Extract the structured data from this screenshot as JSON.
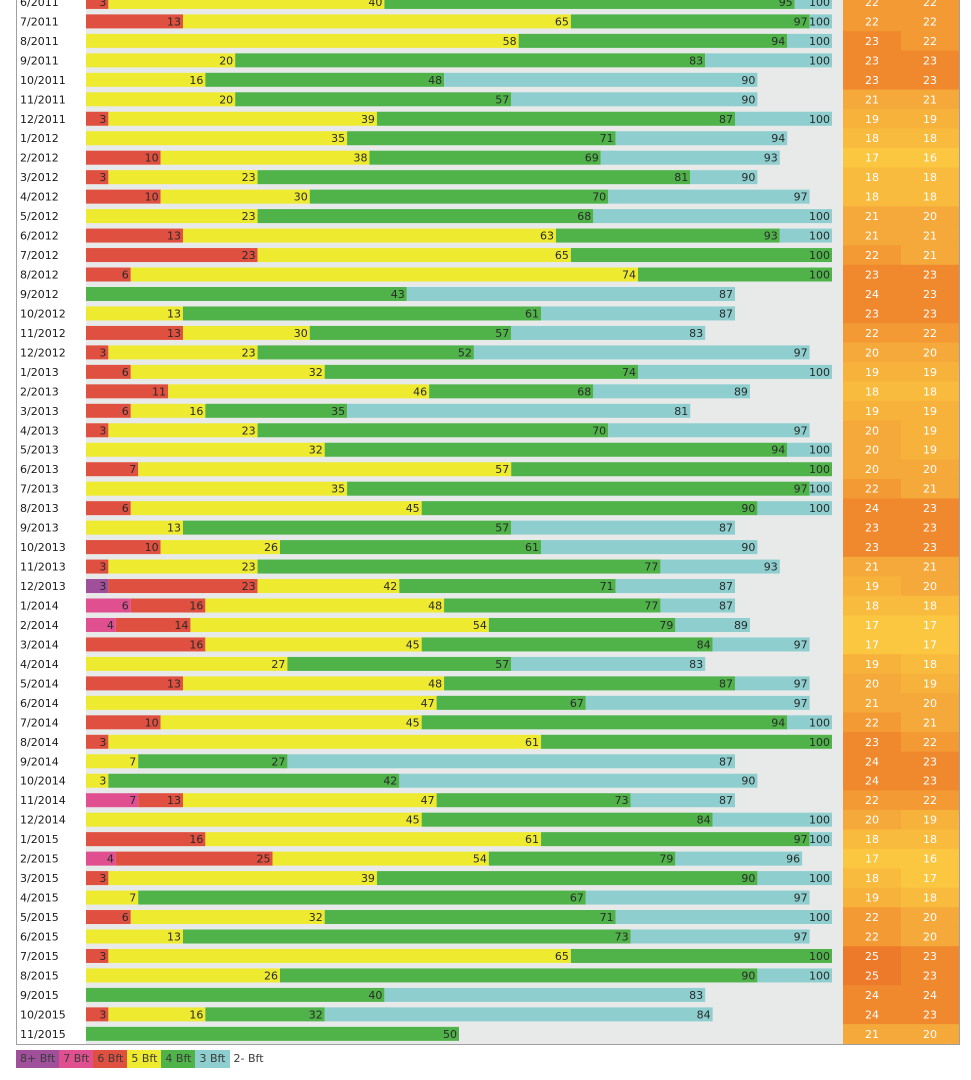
{
  "chart_data": {
    "type": "bar",
    "title": "",
    "xlabel": "",
    "ylabel": "",
    "xlim": [
      0,
      100
    ],
    "series_colors": {
      "8+ Bft": "#a0509a",
      "7 Bft": "#e05090",
      "6 Bft": "#e05040",
      "5 Bft": "#eeea30",
      "4 Bft": "#4fb34a",
      "3 Bft": "#8ecece",
      "2- Bft": "#e8eaea"
    },
    "cumulative_order": [
      "8+ Bft",
      "7 Bft",
      "6 Bft",
      "5 Bft",
      "4 Bft",
      "3 Bft"
    ],
    "rows": [
      {
        "label": "6/2011",
        "c": [
          null,
          null,
          3,
          40,
          95,
          100
        ],
        "t1": "22",
        "t2": "22"
      },
      {
        "label": "7/2011",
        "c": [
          null,
          null,
          13,
          65,
          97,
          100
        ],
        "t1": "22",
        "t2": "22"
      },
      {
        "label": "8/2011",
        "c": [
          null,
          null,
          null,
          58,
          94,
          100
        ],
        "t1": "23",
        "t2": "22"
      },
      {
        "label": "9/2011",
        "c": [
          null,
          null,
          null,
          20,
          83,
          100
        ],
        "t1": "23",
        "t2": "23"
      },
      {
        "label": "10/2011",
        "c": [
          null,
          null,
          null,
          16,
          48,
          90
        ],
        "t1": "23",
        "t2": "23"
      },
      {
        "label": "11/2011",
        "c": [
          null,
          null,
          null,
          20,
          57,
          90
        ],
        "t1": "21",
        "t2": "21"
      },
      {
        "label": "12/2011",
        "c": [
          null,
          null,
          3,
          39,
          87,
          100
        ],
        "t1": "19",
        "t2": "19"
      },
      {
        "label": "1/2012",
        "c": [
          null,
          null,
          null,
          35,
          71,
          94
        ],
        "t1": "18",
        "t2": "18"
      },
      {
        "label": "2/2012",
        "c": [
          null,
          null,
          10,
          38,
          69,
          93
        ],
        "t1": "17",
        "t2": "16"
      },
      {
        "label": "3/2012",
        "c": [
          null,
          null,
          3,
          23,
          81,
          90
        ],
        "t1": "18",
        "t2": "18"
      },
      {
        "label": "4/2012",
        "c": [
          null,
          null,
          10,
          30,
          70,
          97
        ],
        "t1": "18",
        "t2": "18"
      },
      {
        "label": "5/2012",
        "c": [
          null,
          null,
          null,
          23,
          68,
          100
        ],
        "t1": "21",
        "t2": "20"
      },
      {
        "label": "6/2012",
        "c": [
          null,
          null,
          13,
          63,
          93,
          100
        ],
        "t1": "21",
        "t2": "21"
      },
      {
        "label": "7/2012",
        "c": [
          null,
          null,
          23,
          65,
          100,
          null
        ],
        "t1": "22",
        "t2": "21"
      },
      {
        "label": "8/2012",
        "c": [
          null,
          null,
          6,
          74,
          100,
          null
        ],
        "t1": "23",
        "t2": "23"
      },
      {
        "label": "9/2012",
        "c": [
          null,
          null,
          null,
          null,
          43,
          87
        ],
        "t1": "24",
        "t2": "23"
      },
      {
        "label": "10/2012",
        "c": [
          null,
          null,
          null,
          13,
          61,
          87
        ],
        "t1": "23",
        "t2": "23"
      },
      {
        "label": "11/2012",
        "c": [
          null,
          null,
          13,
          30,
          57,
          83
        ],
        "t1": "22",
        "t2": "22"
      },
      {
        "label": "12/2012",
        "c": [
          null,
          null,
          3,
          23,
          52,
          97
        ],
        "t1": "20",
        "t2": "20"
      },
      {
        "label": "1/2013",
        "c": [
          null,
          null,
          6,
          32,
          74,
          100
        ],
        "t1": "19",
        "t2": "19"
      },
      {
        "label": "2/2013",
        "c": [
          null,
          null,
          11,
          46,
          68,
          89
        ],
        "t1": "18",
        "t2": "18"
      },
      {
        "label": "3/2013",
        "c": [
          null,
          null,
          6,
          16,
          35,
          81
        ],
        "t1": "19",
        "t2": "19"
      },
      {
        "label": "4/2013",
        "c": [
          null,
          null,
          3,
          23,
          70,
          97
        ],
        "t1": "20",
        "t2": "19"
      },
      {
        "label": "5/2013",
        "c": [
          null,
          null,
          null,
          32,
          94,
          100
        ],
        "t1": "20",
        "t2": "19"
      },
      {
        "label": "6/2013",
        "c": [
          null,
          null,
          7,
          57,
          100,
          null
        ],
        "t1": "20",
        "t2": "20"
      },
      {
        "label": "7/2013",
        "c": [
          null,
          null,
          null,
          35,
          97,
          100
        ],
        "t1": "22",
        "t2": "21"
      },
      {
        "label": "8/2013",
        "c": [
          null,
          null,
          6,
          45,
          90,
          100
        ],
        "t1": "24",
        "t2": "23"
      },
      {
        "label": "9/2013",
        "c": [
          null,
          null,
          null,
          13,
          57,
          87
        ],
        "t1": "23",
        "t2": "23"
      },
      {
        "label": "10/2013",
        "c": [
          null,
          null,
          10,
          26,
          61,
          90
        ],
        "t1": "23",
        "t2": "23"
      },
      {
        "label": "11/2013",
        "c": [
          null,
          null,
          3,
          23,
          77,
          93
        ],
        "t1": "21",
        "t2": "21"
      },
      {
        "label": "12/2013",
        "c": [
          3,
          null,
          23,
          42,
          71,
          87
        ],
        "t1": "19",
        "t2": "20"
      },
      {
        "label": "1/2014",
        "c": [
          null,
          6,
          16,
          48,
          77,
          87
        ],
        "t1": "18",
        "t2": "18"
      },
      {
        "label": "2/2014",
        "c": [
          null,
          4,
          14,
          54,
          79,
          89
        ],
        "t1": "17",
        "t2": "17"
      },
      {
        "label": "3/2014",
        "c": [
          null,
          null,
          16,
          45,
          84,
          97
        ],
        "t1": "17",
        "t2": "17"
      },
      {
        "label": "4/2014",
        "c": [
          null,
          null,
          null,
          27,
          57,
          83
        ],
        "t1": "19",
        "t2": "18"
      },
      {
        "label": "5/2014",
        "c": [
          null,
          null,
          13,
          48,
          87,
          97
        ],
        "t1": "20",
        "t2": "19"
      },
      {
        "label": "6/2014",
        "c": [
          null,
          null,
          null,
          47,
          67,
          97
        ],
        "t1": "21",
        "t2": "20"
      },
      {
        "label": "7/2014",
        "c": [
          null,
          null,
          10,
          45,
          94,
          100
        ],
        "t1": "22",
        "t2": "21"
      },
      {
        "label": "8/2014",
        "c": [
          null,
          null,
          3,
          61,
          100,
          null
        ],
        "t1": "23",
        "t2": "22"
      },
      {
        "label": "9/2014",
        "c": [
          null,
          null,
          null,
          7,
          27,
          87
        ],
        "t1": "24",
        "t2": "23"
      },
      {
        "label": "10/2014",
        "c": [
          null,
          null,
          null,
          3,
          42,
          90
        ],
        "t1": "24",
        "t2": "23"
      },
      {
        "label": "11/2014",
        "c": [
          null,
          7,
          13,
          47,
          73,
          87
        ],
        "t1": "22",
        "t2": "22"
      },
      {
        "label": "12/2014",
        "c": [
          null,
          null,
          null,
          45,
          84,
          100
        ],
        "t1": "20",
        "t2": "19"
      },
      {
        "label": "1/2015",
        "c": [
          null,
          null,
          16,
          61,
          97,
          100
        ],
        "t1": "18",
        "t2": "18"
      },
      {
        "label": "2/2015",
        "c": [
          null,
          4,
          25,
          54,
          79,
          96
        ],
        "t1": "17",
        "t2": "16"
      },
      {
        "label": "3/2015",
        "c": [
          null,
          null,
          3,
          39,
          90,
          100
        ],
        "t1": "18",
        "t2": "17"
      },
      {
        "label": "4/2015",
        "c": [
          null,
          null,
          null,
          7,
          67,
          97
        ],
        "t1": "19",
        "t2": "18"
      },
      {
        "label": "5/2015",
        "c": [
          null,
          null,
          6,
          32,
          71,
          100
        ],
        "t1": "22",
        "t2": "20"
      },
      {
        "label": "6/2015",
        "c": [
          null,
          null,
          null,
          13,
          73,
          97
        ],
        "t1": "22",
        "t2": "20"
      },
      {
        "label": "7/2015",
        "c": [
          null,
          null,
          3,
          65,
          100,
          null
        ],
        "t1": "25",
        "t2": "23"
      },
      {
        "label": "8/2015",
        "c": [
          null,
          null,
          null,
          26,
          90,
          100
        ],
        "t1": "25",
        "t2": "23"
      },
      {
        "label": "9/2015",
        "c": [
          null,
          null,
          null,
          null,
          40,
          83
        ],
        "t1": "24",
        "t2": "24"
      },
      {
        "label": "10/2015",
        "c": [
          null,
          null,
          3,
          16,
          32,
          84
        ],
        "t1": "24",
        "t2": "23"
      },
      {
        "label": "11/2015",
        "c": [
          null,
          null,
          null,
          null,
          50,
          null
        ],
        "t1": "21",
        "t2": "20"
      }
    ]
  },
  "legend": [
    {
      "label": "8+ Bft",
      "color": "#a0509a"
    },
    {
      "label": "7 Bft",
      "color": "#e05090"
    },
    {
      "label": "6 Bft",
      "color": "#e05040"
    },
    {
      "label": "5 Bft",
      "color": "#eeea30"
    },
    {
      "label": "4 Bft",
      "color": "#4fb34a"
    },
    {
      "label": "3 Bft",
      "color": "#8ecece"
    },
    {
      "label": "2- Bft",
      "color": "#ffffff"
    }
  ]
}
